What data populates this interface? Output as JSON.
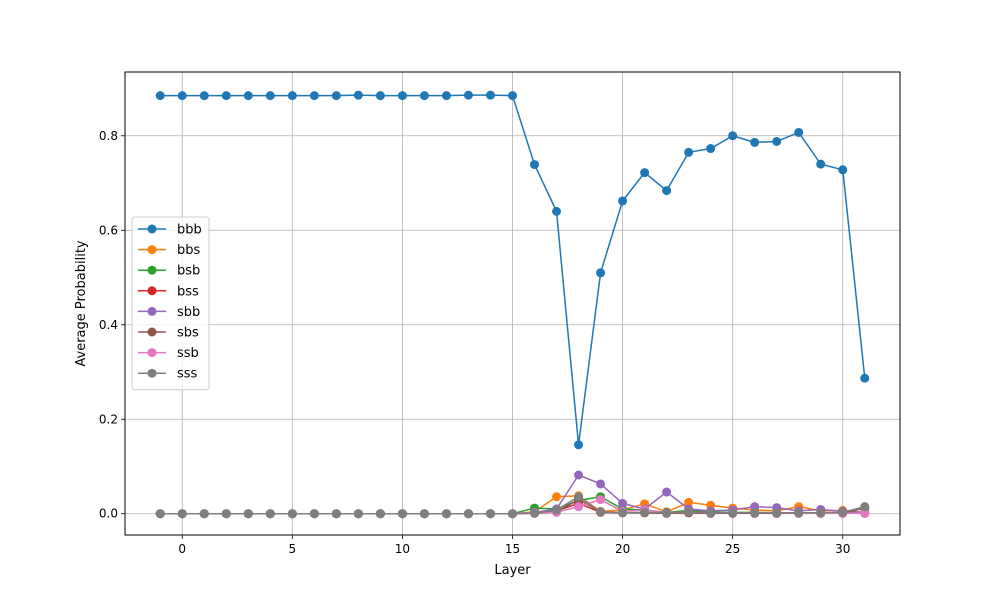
{
  "chart_data": {
    "type": "line",
    "title": "",
    "xlabel": "Layer",
    "ylabel": "Average Probability",
    "xlim": [
      -2.6,
      32.6
    ],
    "ylim": [
      -0.045,
      0.935
    ],
    "xticks": [
      0,
      5,
      10,
      15,
      20,
      25,
      30
    ],
    "yticks": [
      0.0,
      0.2,
      0.4,
      0.6,
      0.8
    ],
    "xtick_labels": [
      "0",
      "5",
      "10",
      "15",
      "20",
      "25",
      "30"
    ],
    "ytick_labels": [
      "0.0",
      "0.2",
      "0.4",
      "0.6",
      "0.8"
    ],
    "grid": true,
    "legend_position": "center-left",
    "x": [
      -1,
      0,
      1,
      2,
      3,
      4,
      5,
      6,
      7,
      8,
      9,
      10,
      11,
      12,
      13,
      14,
      15,
      16,
      17,
      18,
      19,
      20,
      21,
      22,
      23,
      24,
      25,
      26,
      27,
      28,
      29,
      30,
      31
    ],
    "series": [
      {
        "name": "bbb",
        "color": "#1f77b4",
        "values": [
          0.885,
          0.885,
          0.885,
          0.885,
          0.885,
          0.885,
          0.885,
          0.885,
          0.885,
          0.886,
          0.885,
          0.885,
          0.885,
          0.885,
          0.886,
          0.886,
          0.885,
          0.739,
          0.64,
          0.146,
          0.51,
          0.662,
          0.722,
          0.684,
          0.765,
          0.773,
          0.8,
          0.786,
          0.788,
          0.807,
          0.74,
          0.728,
          0.287
        ]
      },
      {
        "name": "bbs",
        "color": "#ff7f0e",
        "values": [
          0.0,
          0.0,
          0.0,
          0.0,
          0.0,
          0.0,
          0.0,
          0.0,
          0.0,
          0.0,
          0.0,
          0.0,
          0.0,
          0.0,
          0.0,
          0.0,
          0.0,
          0.004,
          0.036,
          0.038,
          0.005,
          0.008,
          0.021,
          0.004,
          0.024,
          0.018,
          0.012,
          0.008,
          0.006,
          0.015,
          0.006,
          0.007,
          0.003
        ]
      },
      {
        "name": "bsb",
        "color": "#2ca02c",
        "values": [
          0.0,
          0.0,
          0.0,
          0.0,
          0.0,
          0.0,
          0.0,
          0.0,
          0.0,
          0.0,
          0.0,
          0.0,
          0.0,
          0.0,
          0.0,
          0.0,
          0.0,
          0.012,
          0.01,
          0.028,
          0.036,
          0.01,
          0.008,
          0.003,
          0.007,
          0.004,
          0.003,
          0.003,
          0.002,
          0.002,
          0.002,
          0.002,
          0.002
        ]
      },
      {
        "name": "bss",
        "color": "#d62728",
        "values": [
          0.0,
          0.0,
          0.0,
          0.0,
          0.0,
          0.0,
          0.0,
          0.0,
          0.0,
          0.0,
          0.0,
          0.0,
          0.0,
          0.0,
          0.0,
          0.0,
          0.0,
          0.002,
          0.006,
          0.022,
          0.003,
          0.002,
          0.002,
          0.001,
          0.002,
          0.001,
          0.001,
          0.001,
          0.001,
          0.001,
          0.001,
          0.001,
          0.001
        ]
      },
      {
        "name": "sbb",
        "color": "#9467bd",
        "values": [
          0.0,
          0.0,
          0.0,
          0.0,
          0.0,
          0.0,
          0.0,
          0.0,
          0.0,
          0.0,
          0.0,
          0.0,
          0.0,
          0.0,
          0.0,
          0.0,
          0.0,
          0.003,
          0.01,
          0.082,
          0.063,
          0.022,
          0.01,
          0.046,
          0.01,
          0.006,
          0.008,
          0.015,
          0.013,
          0.006,
          0.009,
          0.005,
          0.003
        ]
      },
      {
        "name": "sbs",
        "color": "#8c564b",
        "values": [
          0.0,
          0.0,
          0.0,
          0.0,
          0.0,
          0.0,
          0.0,
          0.0,
          0.0,
          0.0,
          0.0,
          0.0,
          0.0,
          0.0,
          0.0,
          0.0,
          0.0,
          0.001,
          0.004,
          0.03,
          0.004,
          0.002,
          0.002,
          0.001,
          0.002,
          0.001,
          0.001,
          0.001,
          0.001,
          0.001,
          0.001,
          0.001,
          0.012
        ]
      },
      {
        "name": "ssb",
        "color": "#e377c2",
        "values": [
          0.0,
          0.0,
          0.0,
          0.0,
          0.0,
          0.0,
          0.0,
          0.0,
          0.0,
          0.0,
          0.0,
          0.0,
          0.0,
          0.0,
          0.0,
          0.0,
          0.0,
          0.002,
          0.003,
          0.015,
          0.03,
          0.005,
          0.008,
          0.002,
          0.004,
          0.002,
          0.002,
          0.002,
          0.002,
          0.001,
          0.001,
          0.001,
          0.001
        ]
      },
      {
        "name": "sss",
        "color": "#7f7f7f",
        "values": [
          0.0,
          0.0,
          0.0,
          0.0,
          0.0,
          0.0,
          0.0,
          0.0,
          0.0,
          0.0,
          0.0,
          0.0,
          0.0,
          0.0,
          0.0,
          0.0,
          0.0,
          0.001,
          0.008,
          0.036,
          0.004,
          0.002,
          0.003,
          0.002,
          0.004,
          0.002,
          0.002,
          0.002,
          0.002,
          0.002,
          0.002,
          0.003,
          0.015
        ]
      }
    ]
  }
}
